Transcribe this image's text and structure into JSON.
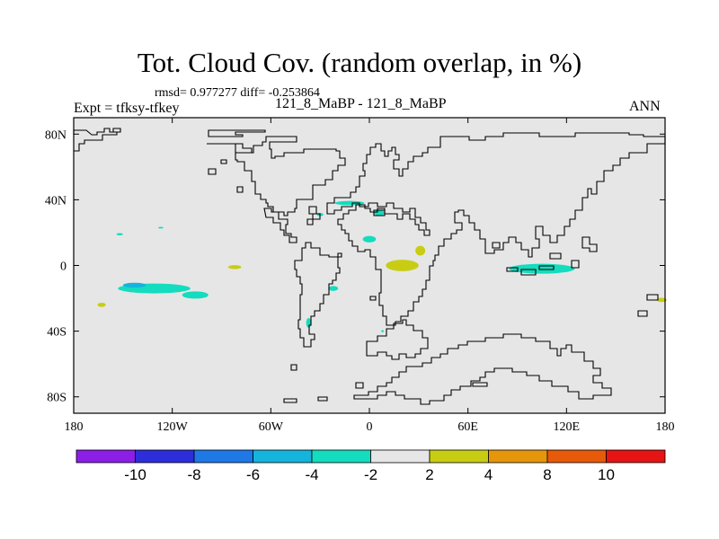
{
  "chart_data": {
    "type": "heatmap",
    "title": "Tot. Cloud Cov. (random overlap, in %)",
    "stats": "rmsd= 0.977277 diff= -0.253864",
    "experiment": "Expt = tfksy-tfkey",
    "cases": "121_8_MaBP - 121_8_MaBP",
    "season": "ANN",
    "xlim": [
      -180,
      180
    ],
    "ylim": [
      -90,
      90
    ],
    "x_ticks": [
      {
        "value": -180,
        "label": "180"
      },
      {
        "value": -120,
        "label": "120W"
      },
      {
        "value": -60,
        "label": "60W"
      },
      {
        "value": 0,
        "label": "0"
      },
      {
        "value": 60,
        "label": "60E"
      },
      {
        "value": 120,
        "label": "120E"
      },
      {
        "value": 180,
        "label": "180"
      }
    ],
    "y_ticks": [
      {
        "value": 80,
        "label": "80N"
      },
      {
        "value": 40,
        "label": "40N"
      },
      {
        "value": 0,
        "label": "0"
      },
      {
        "value": -40,
        "label": "40S"
      },
      {
        "value": -80,
        "label": "80S"
      }
    ],
    "levels": [
      -10,
      -8,
      -6,
      -4,
      -2,
      2,
      4,
      8,
      10
    ],
    "level_labels": [
      "-10",
      "-8",
      "-6",
      "-4",
      "-2",
      "2",
      "4",
      "8",
      "10"
    ],
    "colors": [
      "#8c1ee6",
      "#2d2dd9",
      "#1e78e6",
      "#14b4dc",
      "#14dcbe",
      "#e6e6e6",
      "#c8cd14",
      "#e6960a",
      "#e65a0a",
      "#e61414"
    ],
    "background": "#e6e6e6",
    "anomalies": [
      {
        "name": "south-pacific-band",
        "lon": -131,
        "lat": -14,
        "dlon": 22,
        "dlat": 3,
        "color": "#14dcbe"
      },
      {
        "name": "south-pacific-core",
        "lon": -143,
        "lat": -12,
        "dlon": 7,
        "dlat": 1.5,
        "color": "#14b4dc"
      },
      {
        "name": "south-pacific-tail",
        "lon": -106,
        "lat": -18,
        "dlon": 8,
        "dlat": 2.2,
        "color": "#14dcbe"
      },
      {
        "name": "indian-ocean-patch",
        "lon": 105,
        "lat": -2,
        "dlon": 20,
        "dlat": 3,
        "color": "#14dcbe"
      },
      {
        "name": "africa-positive",
        "lon": 20,
        "lat": 0,
        "dlon": 10,
        "dlat": 3.5,
        "color": "#c8cd14"
      },
      {
        "name": "central-africa-positive",
        "lon": 31,
        "lat": 9,
        "dlon": 3,
        "dlat": 3,
        "color": "#c8cd14"
      },
      {
        "name": "atlantic-positive",
        "lon": -82,
        "lat": -1,
        "dlon": 4,
        "dlat": 1.2,
        "color": "#c8cd14"
      },
      {
        "name": "se-pacific-positive",
        "lon": -163,
        "lat": -24,
        "dlon": 2.5,
        "dlat": 1.3,
        "color": "#c8cd14"
      },
      {
        "name": "east-edge-positive",
        "lon": 178,
        "lat": -21,
        "dlon": 3,
        "dlat": 1.3,
        "color": "#c8cd14"
      },
      {
        "name": "sahara-negative",
        "lon": 0,
        "lat": 16,
        "dlon": 4,
        "dlat": 2,
        "color": "#14dcbe"
      },
      {
        "name": "europe-negative",
        "lon": -12,
        "lat": 38,
        "dlon": 9,
        "dlat": 1.3,
        "color": "#14dcbe"
      },
      {
        "name": "med-negative",
        "lon": 6,
        "lat": 32,
        "dlon": 3,
        "dlat": 2,
        "color": "#14dcbe"
      },
      {
        "name": "mideast-negative",
        "lon": -30,
        "lat": 31,
        "dlon": 2,
        "dlat": 1,
        "color": "#14dcbe"
      },
      {
        "name": "south-america-negative",
        "lon": -37,
        "lat": -35,
        "dlon": 1.5,
        "dlat": 3,
        "color": "#14dcbe"
      },
      {
        "name": "mid-atlantic-negative",
        "lon": -22,
        "lat": -14,
        "dlon": 3,
        "dlat": 1.5,
        "color": "#14dcbe"
      },
      {
        "name": "north-pacific-negative",
        "lon": -152,
        "lat": 19,
        "dlon": 2,
        "dlat": 0.7,
        "color": "#14dcbe"
      },
      {
        "name": "tiny-negative",
        "lon": -127,
        "lat": 23,
        "dlon": 1.6,
        "dlat": 0.5,
        "color": "#14dcbe"
      },
      {
        "name": "sa-dot",
        "lon": 8,
        "lat": -40,
        "dlon": 0.7,
        "dlat": 0.7,
        "color": "#14dcbe"
      }
    ]
  }
}
